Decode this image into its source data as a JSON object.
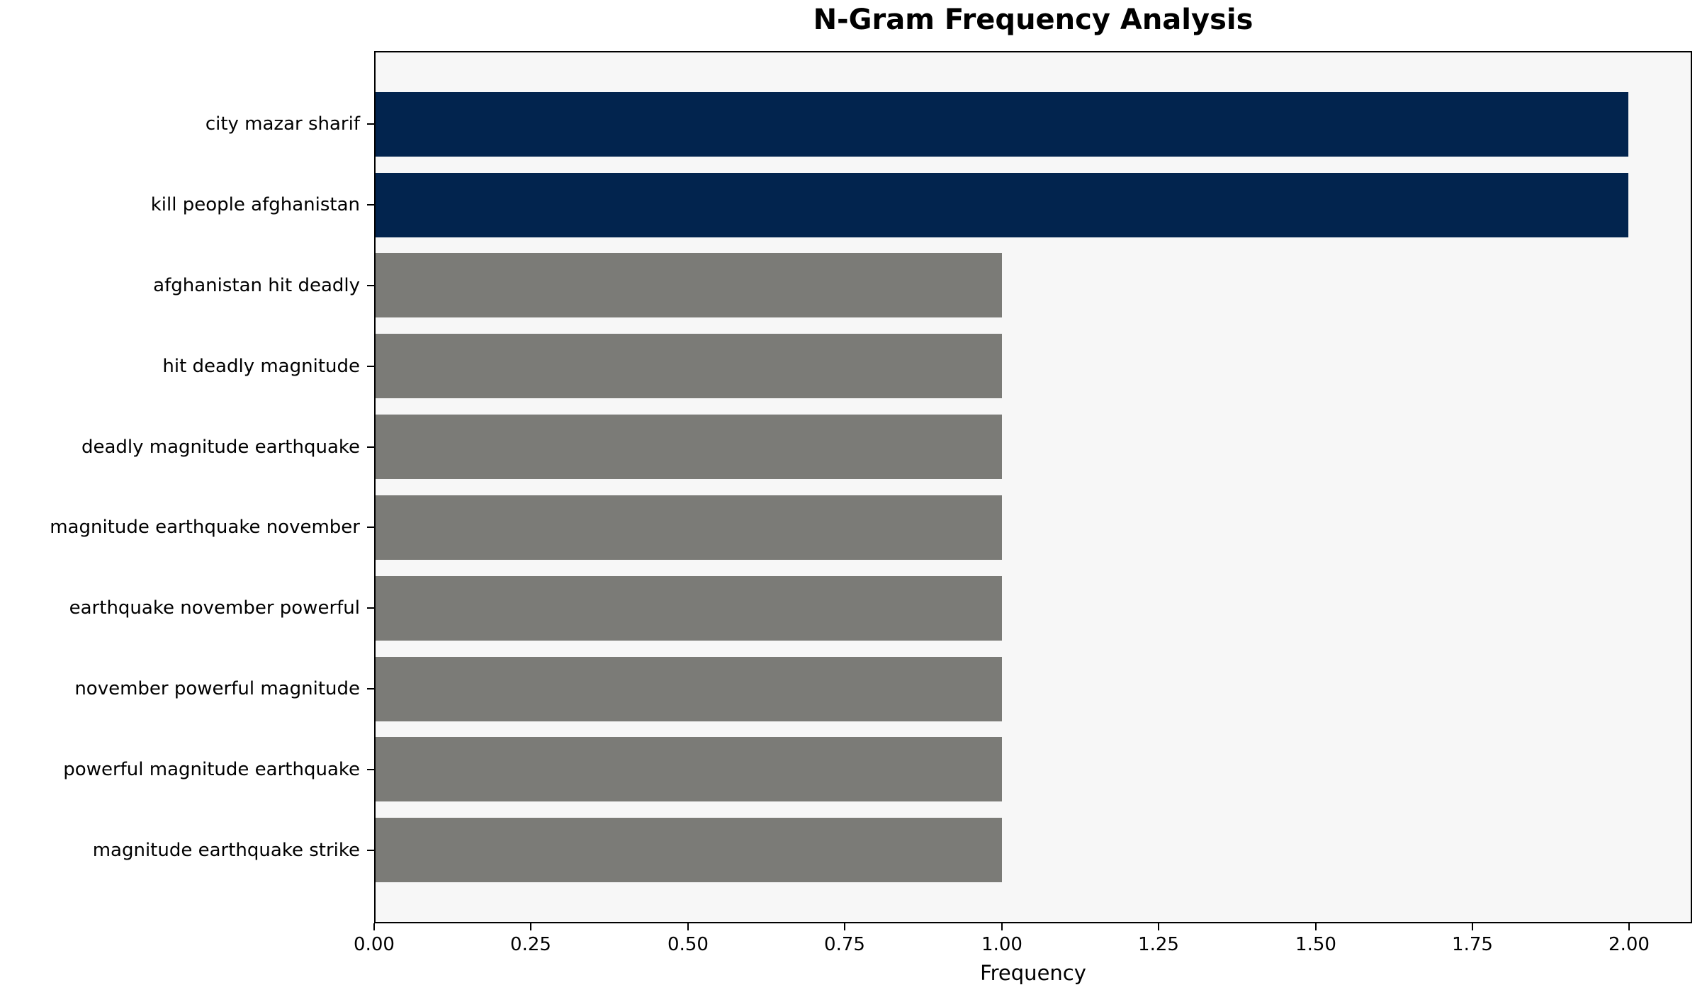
{
  "chart_data": {
    "type": "bar",
    "orientation": "horizontal",
    "title": "N-Gram Frequency Analysis",
    "xlabel": "Frequency",
    "ylabel": "",
    "categories": [
      "city mazar sharif",
      "kill people afghanistan",
      "afghanistan hit deadly",
      "hit deadly magnitude",
      "deadly magnitude earthquake",
      "magnitude earthquake november",
      "earthquake november powerful",
      "november powerful magnitude",
      "powerful magnitude earthquake",
      "magnitude earthquake strike"
    ],
    "values": [
      2,
      2,
      1,
      1,
      1,
      1,
      1,
      1,
      1,
      1
    ],
    "bar_colors": [
      "#02244e",
      "#02244e",
      "#7b7b77",
      "#7b7b77",
      "#7b7b77",
      "#7b7b77",
      "#7b7b77",
      "#7b7b77",
      "#7b7b77",
      "#7b7b77"
    ],
    "xlim": [
      0,
      2.1
    ],
    "xticks": [
      {
        "value": 0.0,
        "label": "0.00"
      },
      {
        "value": 0.25,
        "label": "0.25"
      },
      {
        "value": 0.5,
        "label": "0.50"
      },
      {
        "value": 0.75,
        "label": "0.75"
      },
      {
        "value": 1.0,
        "label": "1.00"
      },
      {
        "value": 1.25,
        "label": "1.25"
      },
      {
        "value": 1.5,
        "label": "1.50"
      },
      {
        "value": 1.75,
        "label": "1.75"
      },
      {
        "value": 2.0,
        "label": "2.00"
      }
    ],
    "grid": false,
    "legend_position": "none",
    "colors": {
      "highlight_bar": "#02244e",
      "default_bar": "#7b7b77",
      "plot_background": "#f7f7f7",
      "figure_background": "#ffffff",
      "axis": "#000000",
      "text": "#000000"
    }
  }
}
